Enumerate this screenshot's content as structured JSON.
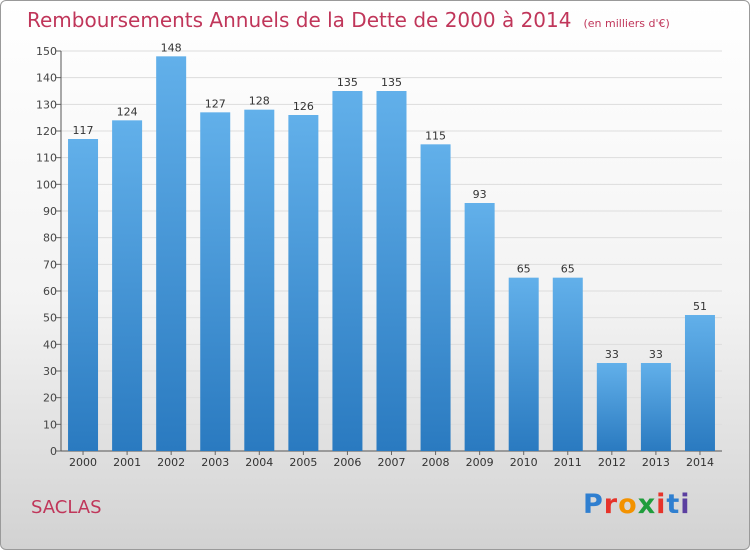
{
  "title": "Remboursements Annuels de la Dette de 2000 à 2014",
  "subtitle": "(en milliers d'€)",
  "location": "SACLAS",
  "brand": "Proxiti",
  "colors": {
    "bar_top": "#62b0ea",
    "bar_bottom": "#2a7ac0",
    "title": "#c0365a"
  },
  "chart_data": {
    "type": "bar",
    "title": "Remboursements Annuels de la Dette de 2000 à 2014",
    "subtitle": "(en milliers d'€)",
    "xlabel": "",
    "ylabel": "",
    "categories": [
      "2000",
      "2001",
      "2002",
      "2003",
      "2004",
      "2005",
      "2006",
      "2007",
      "2008",
      "2009",
      "2010",
      "2011",
      "2012",
      "2013",
      "2014"
    ],
    "values": [
      117,
      124,
      148,
      127,
      128,
      126,
      135,
      135,
      115,
      93,
      65,
      65,
      33,
      33,
      51
    ],
    "ylim": [
      0,
      150
    ],
    "yticks": [
      0,
      10,
      20,
      30,
      40,
      50,
      60,
      70,
      80,
      90,
      100,
      110,
      120,
      130,
      140,
      150
    ],
    "grid": true
  }
}
